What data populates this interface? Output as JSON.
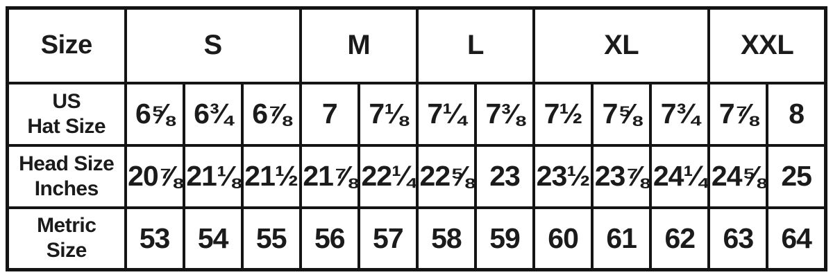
{
  "colors": {
    "background": "#ffffff",
    "border": "#141414",
    "text": "#1b1b1b"
  },
  "chart_data": {
    "type": "table",
    "corner_label": "Size",
    "size_groups": [
      {
        "label": "S",
        "span": 3
      },
      {
        "label": "M",
        "span": 2
      },
      {
        "label": "L",
        "span": 2
      },
      {
        "label": "XL",
        "span": 3
      },
      {
        "label": "XXL",
        "span": 2
      }
    ],
    "rows": [
      {
        "label_line1": "US",
        "label_line2": "Hat Size",
        "values": [
          "6⅝",
          "6¾",
          "6⅞",
          "7",
          "7⅛",
          "7¼",
          "7⅜",
          "7½",
          "7⅝",
          "7¾",
          "7⅞",
          "8"
        ]
      },
      {
        "label_line1": "Head Size",
        "label_line2": "Inches",
        "values": [
          "20⅞",
          "21⅛",
          "21½",
          "21⅞",
          "22¼",
          "22⅝",
          "23",
          "23½",
          "23⅞",
          "24¼",
          "24⅝",
          "25"
        ]
      },
      {
        "label_line1": "Metric",
        "label_line2": "Size",
        "values": [
          "53",
          "54",
          "55",
          "56",
          "57",
          "58",
          "59",
          "60",
          "61",
          "62",
          "63",
          "64"
        ]
      }
    ]
  }
}
